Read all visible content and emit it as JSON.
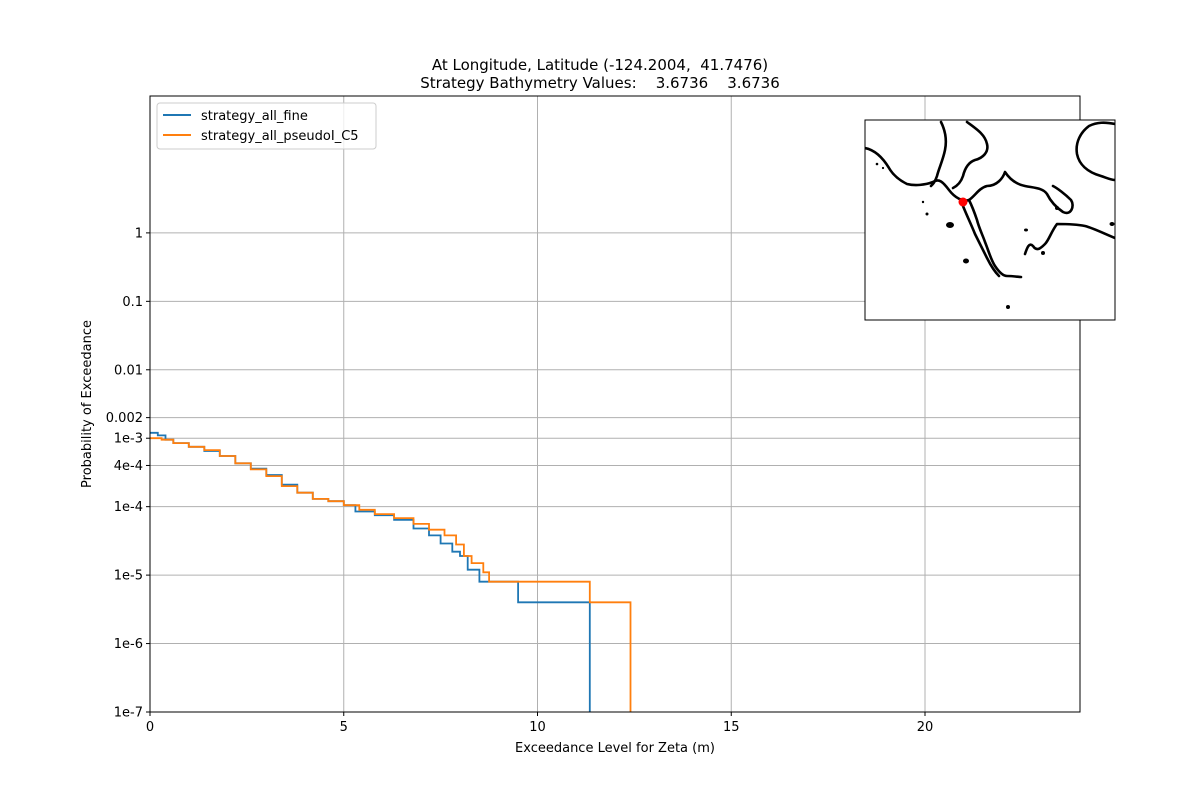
{
  "chart_data": {
    "type": "line",
    "title": "At Longitude, Latitude (-124.2004,  41.7476)",
    "subtitle": "Strategy Bathymetry Values:    3.6736    3.6736",
    "xlabel": "Exceedance Level for Zeta (m)",
    "ylabel": "Probability of Exceedance",
    "xlim": [
      0,
      24
    ],
    "ylim": [
      1e-07,
      100
    ],
    "yscale": "log",
    "grid": true,
    "legend_position": "upper-left",
    "x_ticks": [
      {
        "value": 0,
        "label": "0"
      },
      {
        "value": 5,
        "label": "5"
      },
      {
        "value": 10,
        "label": "10"
      },
      {
        "value": 15,
        "label": "15"
      },
      {
        "value": 20,
        "label": "20"
      }
    ],
    "y_ticks": [
      {
        "value": 1,
        "label": "1"
      },
      {
        "value": 0.1,
        "label": "0.1"
      },
      {
        "value": 0.01,
        "label": "0.01"
      },
      {
        "value": 0.002,
        "label": "0.002"
      },
      {
        "value": 0.001,
        "label": "1e-3"
      },
      {
        "value": 0.0004,
        "label": "4e-4"
      },
      {
        "value": 0.0001,
        "label": "1e-4"
      },
      {
        "value": 1e-05,
        "label": "1e-5"
      },
      {
        "value": 1e-06,
        "label": "1e-6"
      },
      {
        "value": 1e-07,
        "label": "1e-7"
      }
    ],
    "series": [
      {
        "name": "strategy_all_fine",
        "color": "#1f77b4",
        "step": true,
        "x": [
          0,
          0.2,
          0.4,
          0.6,
          1.0,
          1.4,
          1.8,
          2.2,
          2.6,
          3.0,
          3.4,
          3.8,
          4.2,
          4.6,
          5.0,
          5.3,
          5.8,
          6.3,
          6.8,
          7.2,
          7.5,
          7.8,
          8.0,
          8.2,
          8.5,
          9.5,
          11.35,
          11.35
        ],
        "y": [
          0.0012,
          0.0011,
          0.00095,
          0.00085,
          0.00075,
          0.00065,
          0.00055,
          0.00043,
          0.00036,
          0.00029,
          0.00021,
          0.00016,
          0.00013,
          0.00012,
          0.000105,
          8.5e-05,
          7.5e-05,
          6.4e-05,
          4.8e-05,
          3.8e-05,
          2.9e-05,
          2.2e-05,
          1.9e-05,
          1.2e-05,
          8e-06,
          4e-06,
          4e-06,
          1e-07
        ]
      },
      {
        "name": "strategy_all_pseudoI_C5",
        "color": "#ff7f0e",
        "step": true,
        "x": [
          0,
          0.3,
          0.6,
          1.0,
          1.4,
          1.8,
          2.2,
          2.6,
          3.0,
          3.4,
          3.8,
          4.2,
          4.6,
          5.0,
          5.4,
          5.8,
          6.3,
          6.8,
          7.2,
          7.6,
          7.9,
          8.1,
          8.3,
          8.6,
          8.75,
          11.35,
          12.4,
          12.4
        ],
        "y": [
          0.001,
          0.00095,
          0.00085,
          0.00075,
          0.00067,
          0.00055,
          0.00043,
          0.00035,
          0.00028,
          0.0002,
          0.00016,
          0.00013,
          0.00012,
          0.000105,
          9e-05,
          7.8e-05,
          6.8e-05,
          5.6e-05,
          4.6e-05,
          3.8e-05,
          2.8e-05,
          1.9e-05,
          1.5e-05,
          1.1e-05,
          8e-06,
          4e-06,
          4e-06,
          1e-07
        ]
      }
    ],
    "inset_map": {
      "marker_color": "#ff0000",
      "coastline_color": "#000000"
    }
  }
}
